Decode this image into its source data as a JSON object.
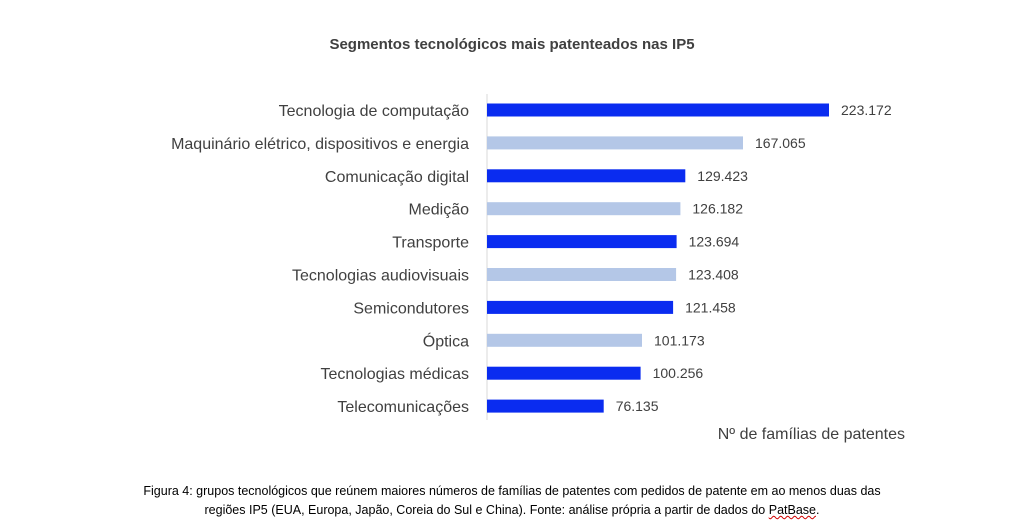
{
  "chart_data": {
    "type": "bar",
    "orientation": "horizontal",
    "title": "Segmentos tecnológicos mais patenteados nas IP5",
    "xlabel": "Nº de famílias de patentes",
    "ylabel": "",
    "xlim": [
      0,
      280000
    ],
    "grid": false,
    "categories": [
      "Tecnologia de computação",
      "Maquinário elétrico, dispositivos e energia",
      "Comunicação digital",
      "Medição",
      "Transporte",
      "Tecnologias audiovisuais",
      "Semicondutores",
      "Óptica",
      "Tecnologias médicas",
      "Telecomunicações"
    ],
    "values": [
      223172,
      167065,
      129423,
      126182,
      123694,
      123408,
      121458,
      101173,
      100256,
      76135
    ],
    "value_labels": [
      "223.172",
      "167.065",
      "129.423",
      "126.182",
      "123.694",
      "123.408",
      "121.458",
      "101.173",
      "100.256",
      "76.135"
    ],
    "colors": [
      "#0a2cf0",
      "#b4c7e7",
      "#0a2cf0",
      "#b4c7e7",
      "#0a2cf0",
      "#b4c7e7",
      "#0a2cf0",
      "#b4c7e7",
      "#0a2cf0",
      "#0a2cf0"
    ]
  },
  "caption": {
    "line1": "Figura 4: grupos tecnológicos que reúnem maiores números de famílias de patentes com pedidos de patente em ao menos duas das",
    "line2_prefix": "regiões IP5 (EUA, Europa, Japão, Coreia do Sul e China). Fonte: análise própria a partir de dados do ",
    "line2_source": "PatBase",
    "line2_suffix": "."
  }
}
